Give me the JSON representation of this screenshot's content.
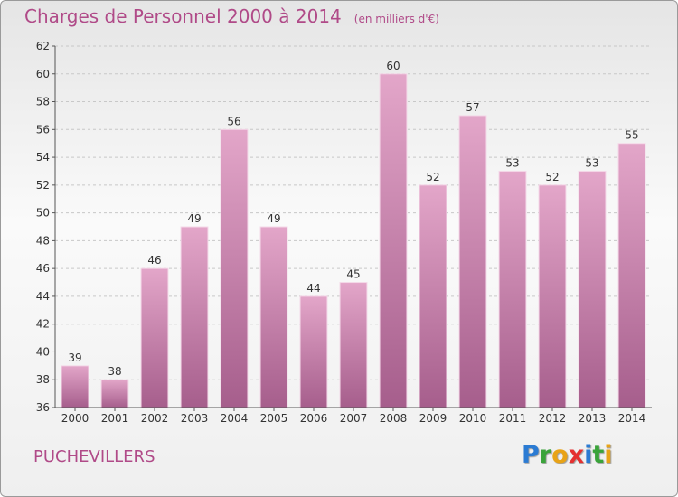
{
  "header": {
    "title": "Charges de Personnel 2000 à 2014",
    "subtitle": "(en milliers d'€)"
  },
  "footer": {
    "place": "PUCHEVILLERS",
    "logo": [
      "P",
      "r",
      "o",
      "x",
      "i",
      "t",
      "i"
    ],
    "logo_colors": [
      "#2b7bd3",
      "#3aa33a",
      "#e8a317",
      "#e53030",
      "#2b7bd3",
      "#3aa33a",
      "#e8a317"
    ]
  },
  "colors": {
    "bar_top": "#e3a6c9",
    "bar_bottom": "#a65e8c",
    "text": "#333333",
    "accent": "#b04a88"
  },
  "chart_data": {
    "type": "bar",
    "categories": [
      "2000",
      "2001",
      "2002",
      "2003",
      "2004",
      "2005",
      "2006",
      "2007",
      "2008",
      "2009",
      "2010",
      "2011",
      "2012",
      "2013",
      "2014"
    ],
    "values": [
      39,
      38,
      46,
      49,
      56,
      49,
      44,
      45,
      60,
      52,
      57,
      53,
      52,
      53,
      55
    ],
    "title": "Charges de Personnel 2000 à 2014",
    "subtitle": "(en milliers d'€)",
    "xlabel": "",
    "ylabel": "",
    "ylim": [
      36,
      62
    ],
    "yticks": [
      36,
      38,
      40,
      42,
      44,
      46,
      48,
      50,
      52,
      54,
      56,
      58,
      60,
      62
    ],
    "grid": true,
    "data_labels": true
  }
}
